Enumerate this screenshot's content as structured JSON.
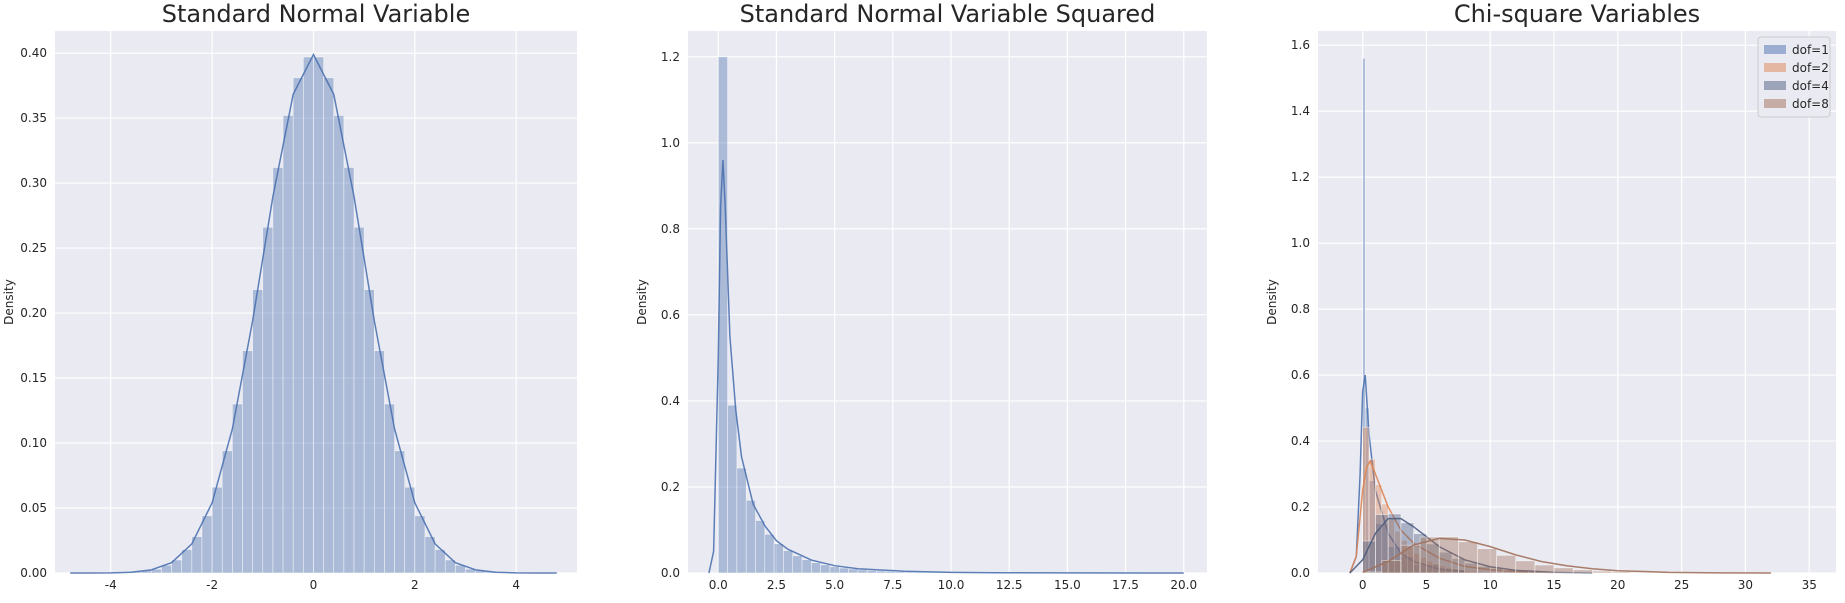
{
  "chart_data": [
    {
      "type": "histogram",
      "title": "Standard Normal Variable",
      "y_label": "Density",
      "color": "#4c72b0",
      "bins": [
        -3.6,
        -3.4,
        -3.2,
        -3.0,
        -2.8,
        -2.6,
        -2.4,
        -2.2,
        -2.0,
        -1.8,
        -1.6,
        -1.4,
        -1.2,
        -1.0,
        -0.8,
        -0.6,
        -0.4,
        -0.2,
        0.0,
        0.2,
        0.4,
        0.6,
        0.8,
        1.0,
        1.2,
        1.4,
        1.6,
        1.8,
        2.0,
        2.2,
        2.4,
        2.6,
        2.8,
        3.0,
        3.2,
        3.4,
        3.6
      ],
      "values": [
        0.001,
        0.002,
        0.003,
        0.006,
        0.01,
        0.018,
        0.028,
        0.044,
        0.066,
        0.094,
        0.13,
        0.171,
        0.218,
        0.266,
        0.312,
        0.352,
        0.381,
        0.397,
        0.397,
        0.381,
        0.352,
        0.312,
        0.266,
        0.218,
        0.171,
        0.13,
        0.094,
        0.066,
        0.044,
        0.028,
        0.018,
        0.01,
        0.006,
        0.003,
        0.002,
        0.001
      ],
      "kde": {
        "x": [
          -4.8,
          -4.4,
          -4.0,
          -3.6,
          -3.2,
          -2.8,
          -2.4,
          -2.0,
          -1.6,
          -1.2,
          -0.8,
          -0.4,
          0.0,
          0.4,
          0.8,
          1.2,
          1.6,
          2.0,
          2.4,
          2.8,
          3.2,
          3.6,
          4.0,
          4.4,
          4.8
        ],
        "values": [
          0,
          0,
          0.0001,
          0.0006,
          0.0024,
          0.0079,
          0.0224,
          0.054,
          0.1109,
          0.1942,
          0.2897,
          0.3683,
          0.3989,
          0.3683,
          0.2897,
          0.1942,
          0.1109,
          0.054,
          0.0224,
          0.0079,
          0.0024,
          0.0006,
          0.0001,
          0,
          0
        ]
      },
      "xlim": [
        -5.1,
        5.2
      ],
      "ylim": [
        0,
        0.417
      ],
      "xticks": [
        -4,
        -2,
        0,
        2,
        4
      ],
      "yticks": [
        {
          "value": 0,
          "label": "0.00"
        },
        0.05,
        {
          "value": 0.1,
          "label": "0.10"
        },
        0.15,
        {
          "value": 0.2,
          "label": "0.20"
        },
        0.25,
        {
          "value": 0.3,
          "label": "0.30"
        },
        0.35,
        {
          "value": 0.4,
          "label": "0.40"
        }
      ],
      "grid": true
    },
    {
      "type": "histogram",
      "title": "Standard Normal Variable Squared",
      "y_label": "Density",
      "color": "#4c72b0",
      "bins": [
        0,
        0.4,
        0.8,
        1.2,
        1.6,
        2.0,
        2.4,
        2.8,
        3.2,
        3.6,
        4.0,
        4.4,
        4.8,
        5.2,
        5.6,
        6.0,
        6.4,
        6.8,
        7.2,
        7.6,
        8.0,
        8.4,
        8.8,
        9.2,
        9.6,
        10.0
      ],
      "values": [
        1.2,
        0.39,
        0.244,
        0.169,
        0.122,
        0.09,
        0.068,
        0.052,
        0.04,
        0.031,
        0.024,
        0.019,
        0.0145,
        0.0115,
        0.0092,
        0.0073,
        0.0058,
        0.0046,
        0.0037,
        0.0029,
        0.0023,
        0.0019,
        0.0015,
        0.0012,
        0.0009
      ],
      "kde": {
        "x": [
          -0.4,
          -0.2,
          0,
          0.1,
          0.2,
          0.3,
          0.5,
          0.75,
          1.0,
          1.5,
          2,
          2.5,
          3,
          4,
          5,
          6,
          8,
          10,
          12,
          15,
          20
        ],
        "values": [
          0,
          0.05,
          0.5,
          0.85,
          0.96,
          0.85,
          0.55,
          0.38,
          0.27,
          0.16,
          0.11,
          0.075,
          0.055,
          0.03,
          0.017,
          0.01,
          0.004,
          0.0015,
          0.0006,
          0.0002,
          0
        ]
      },
      "xlim": [
        -1.3,
        21.0
      ],
      "ylim": [
        0,
        1.26
      ],
      "xticks": [
        {
          "value": 0,
          "label": "0.0"
        },
        2.5,
        {
          "value": 5,
          "label": "5.0"
        },
        7.5,
        {
          "value": 10,
          "label": "10.0"
        },
        12.5,
        {
          "value": 15,
          "label": "15.0"
        },
        17.5,
        {
          "value": 20,
          "label": "20.0"
        }
      ],
      "yticks": [
        {
          "value": 0,
          "label": "0.0"
        },
        0.2,
        0.4,
        0.6,
        0.8,
        {
          "value": 1,
          "label": "1.0"
        },
        1.2
      ],
      "grid": true
    },
    {
      "type": "multi_histogram",
      "title": "Chi-square Variables",
      "y_label": "Density",
      "legend": "upper right",
      "series": [
        {
          "name": "dof=1",
          "color": "#4c72b0",
          "bins": [
            0,
            0.2,
            0.5,
            1,
            2,
            3,
            4,
            6,
            8
          ],
          "values": [
            1.56,
            0.5,
            0.28,
            0.15,
            0.08,
            0.05,
            0.025,
            0.01
          ],
          "kde": {
            "x": [
              -1,
              -0.5,
              -0.2,
              0,
              0.2,
              0.5,
              1,
              2,
              3,
              4,
              6,
              8
            ],
            "values": [
              0,
              0.05,
              0.3,
              0.55,
              0.6,
              0.42,
              0.25,
              0.12,
              0.06,
              0.035,
              0.012,
              0.004
            ]
          }
        },
        {
          "name": "dof=2",
          "color": "#dd8452",
          "bins": [
            0,
            0.5,
            1,
            1.5,
            2,
            2.5,
            3,
            3.5,
            4,
            4.5,
            5,
            5.5,
            6,
            6.5,
            7,
            7.5,
            8,
            8.5,
            9,
            9.5,
            10,
            10.5,
            11,
            11.5,
            12
          ],
          "values": [
            0.442,
            0.345,
            0.268,
            0.209,
            0.163,
            0.127,
            0.099,
            0.077,
            0.06,
            0.047,
            0.036,
            0.028,
            0.022,
            0.017,
            0.013,
            0.01,
            0.008,
            0.006,
            0.005,
            0.004,
            0.003,
            0.002,
            0.002,
            0.001
          ],
          "kde": {
            "x": [
              -1,
              -0.5,
              0,
              0.3,
              0.6,
              1,
              2,
              3,
              4,
              6,
              8,
              10,
              12,
              15
            ],
            "values": [
              0,
              0.05,
              0.25,
              0.32,
              0.34,
              0.3,
              0.2,
              0.13,
              0.09,
              0.045,
              0.02,
              0.01,
              0.004,
              0.001
            ]
          }
        },
        {
          "name": "dof=4",
          "color": "#4c5d80",
          "bins": [
            0,
            1,
            2,
            3,
            4,
            5,
            6,
            7,
            8,
            9,
            10,
            11,
            12,
            13,
            14,
            15,
            16
          ],
          "values": [
            0.097,
            0.177,
            0.179,
            0.152,
            0.119,
            0.088,
            0.063,
            0.044,
            0.03,
            0.02,
            0.014,
            0.009,
            0.006,
            0.004,
            0.002,
            0.002
          ],
          "kde": {
            "x": [
              -1,
              0,
              1,
              2,
              3,
              4,
              5,
              6,
              8,
              10,
              12,
              15,
              18
            ],
            "values": [
              0,
              0.04,
              0.12,
              0.165,
              0.165,
              0.14,
              0.11,
              0.08,
              0.04,
              0.019,
              0.008,
              0.002,
              0
            ]
          }
        },
        {
          "name": "dof=8",
          "color": "#a0705a",
          "bins": [
            0,
            1.5,
            3,
            4.5,
            6,
            7.5,
            9,
            10.5,
            12,
            13.5,
            15,
            16.5,
            18,
            19.5,
            21,
            22.5,
            24,
            25.5,
            27
          ],
          "values": [
            0.003,
            0.0385,
            0.0843,
            0.109,
            0.1096,
            0.0945,
            0.0737,
            0.0535,
            0.0368,
            0.0242,
            0.0155,
            0.0096,
            0.0058,
            0.0035,
            0.002,
            0.0012,
            0.0007,
            0.0004
          ],
          "kde": {
            "x": [
              0,
              2,
              4,
              6,
              8,
              10,
              12,
              14,
              16,
              18,
              20,
              24,
              28,
              32
            ],
            "values": [
              0.002,
              0.035,
              0.085,
              0.105,
              0.1,
              0.08,
              0.055,
              0.035,
              0.022,
              0.013,
              0.007,
              0.002,
              0.0005,
              0
            ]
          }
        }
      ],
      "xlim": [
        -3.5,
        37.1
      ],
      "ylim": [
        0,
        1.643
      ],
      "xticks": [
        0,
        5,
        10,
        15,
        20,
        25,
        30,
        35
      ],
      "yticks": [
        {
          "value": 0,
          "label": "0.0"
        },
        0.2,
        0.4,
        0.6,
        0.8,
        {
          "value": 1,
          "label": "1.0"
        },
        1.2,
        1.4,
        1.6
      ],
      "grid": true
    }
  ]
}
